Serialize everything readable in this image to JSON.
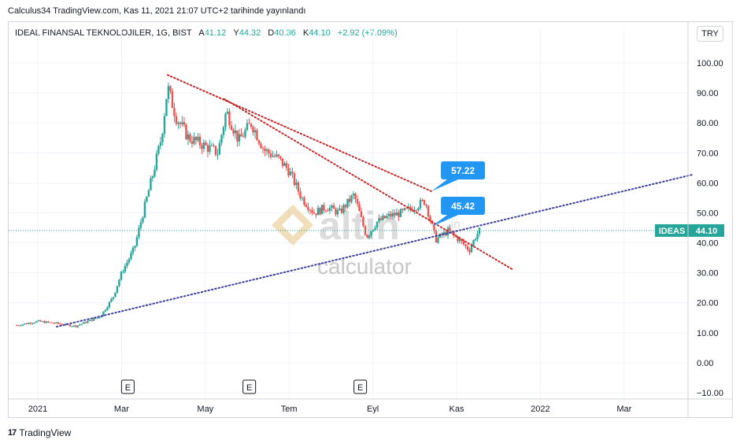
{
  "header": {
    "published": "Calculus34 TradingView.com, Kas 11, 2021 21:07 UTC+2 tarihinde yayınlandı",
    "symbol": "IDEAL FINANSAL TEKNOLOJILER, 1G, BIST",
    "open_label": "A",
    "open": "41.12",
    "high_label": "Y",
    "high": "44.32",
    "low_label": "D",
    "low": "40.36",
    "close_label": "K",
    "close": "44.10",
    "change": "+2.92 (+7.09%)",
    "currency": "TRY"
  },
  "footer": {
    "brand": "TradingView",
    "logo": "17"
  },
  "watermark": {
    "brand_text": "altin",
    "suffix": ".in",
    "sub": "calculator"
  },
  "colors": {
    "up": "#26a69a",
    "down": "#ef5350",
    "trend_red": "#c62828",
    "trend_blue": "#3f3fa0",
    "label_blue": "#2196f3",
    "price_tag": "#26a69a"
  },
  "chart_data": {
    "type": "candlestick",
    "title": "IDEAL FINANSAL TEKNOLOJILER, 1G, BIST",
    "ylim": [
      -12,
      105
    ],
    "y_ticks": [
      "100.00",
      "90.00",
      "80.00",
      "70.00",
      "60.00",
      "50.00",
      "40.00",
      "30.00",
      "20.00",
      "10.00",
      "0.00",
      "−10.00"
    ],
    "y_tick_values": [
      100,
      90,
      80,
      70,
      60,
      50,
      40,
      30,
      20,
      10,
      0,
      -10
    ],
    "x_ticks": [
      {
        "label": "2021",
        "t": 0
      },
      {
        "label": "Mar",
        "t": 2
      },
      {
        "label": "May",
        "t": 4
      },
      {
        "label": "Tem",
        "t": 6
      },
      {
        "label": "Eyl",
        "t": 8
      },
      {
        "label": "Kas",
        "t": 10
      },
      {
        "label": "2022",
        "t": 12
      },
      {
        "label": "Mar",
        "t": 14
      }
    ],
    "last_price": {
      "symbol": "IDEAS",
      "value": 44.1
    },
    "earnings_markers": [
      {
        "label": "E",
        "t": 2.15
      },
      {
        "label": "E",
        "t": 5.05
      },
      {
        "label": "E",
        "t": 7.7
      }
    ],
    "trendlines": [
      {
        "color": "red",
        "points": [
          {
            "t": 3.1,
            "y": 96
          },
          {
            "t": 9.4,
            "y": 57.2
          }
        ]
      },
      {
        "color": "red",
        "points": [
          {
            "t": 4.45,
            "y": 88
          },
          {
            "t": 11.35,
            "y": 31
          }
        ]
      },
      {
        "color": "blue",
        "points": [
          {
            "t": 0.45,
            "y": 12
          },
          {
            "t": 15.65,
            "y": 62.8
          }
        ]
      }
    ],
    "callouts": [
      {
        "label": "57.22",
        "t": 9.4,
        "y": 57.2
      },
      {
        "label": "45.42",
        "t": 9.4,
        "y": 45.4
      }
    ],
    "price_path": [
      {
        "t": -0.5,
        "y": 12.5
      },
      {
        "t": 0,
        "y": 13.8
      },
      {
        "t": 0.4,
        "y": 13.2
      },
      {
        "t": 0.9,
        "y": 12.2
      },
      {
        "t": 1.2,
        "y": 13.8
      },
      {
        "t": 1.5,
        "y": 15.5
      },
      {
        "t": 1.8,
        "y": 22
      },
      {
        "t": 2,
        "y": 30
      },
      {
        "t": 2.3,
        "y": 38
      },
      {
        "t": 2.55,
        "y": 52
      },
      {
        "t": 2.75,
        "y": 63
      },
      {
        "t": 2.95,
        "y": 75
      },
      {
        "t": 3.1,
        "y": 92
      },
      {
        "t": 3.3,
        "y": 82
      },
      {
        "t": 3.6,
        "y": 75
      },
      {
        "t": 3.9,
        "y": 73
      },
      {
        "t": 4.3,
        "y": 70
      },
      {
        "t": 4.5,
        "y": 84
      },
      {
        "t": 4.8,
        "y": 74
      },
      {
        "t": 5.1,
        "y": 80
      },
      {
        "t": 5.4,
        "y": 71
      },
      {
        "t": 5.75,
        "y": 68
      },
      {
        "t": 6,
        "y": 64
      },
      {
        "t": 6.3,
        "y": 55
      },
      {
        "t": 6.6,
        "y": 50
      },
      {
        "t": 6.9,
        "y": 52
      },
      {
        "t": 7.2,
        "y": 50
      },
      {
        "t": 7.55,
        "y": 56
      },
      {
        "t": 7.85,
        "y": 42
      },
      {
        "t": 8.1,
        "y": 47
      },
      {
        "t": 8.4,
        "y": 49
      },
      {
        "t": 8.7,
        "y": 50
      },
      {
        "t": 9,
        "y": 52
      },
      {
        "t": 9.25,
        "y": 54
      },
      {
        "t": 9.5,
        "y": 41
      },
      {
        "t": 9.8,
        "y": 44
      },
      {
        "t": 10.1,
        "y": 40.5
      },
      {
        "t": 10.3,
        "y": 37.5
      },
      {
        "t": 10.45,
        "y": 42
      },
      {
        "t": 10.55,
        "y": 44.1
      }
    ]
  }
}
